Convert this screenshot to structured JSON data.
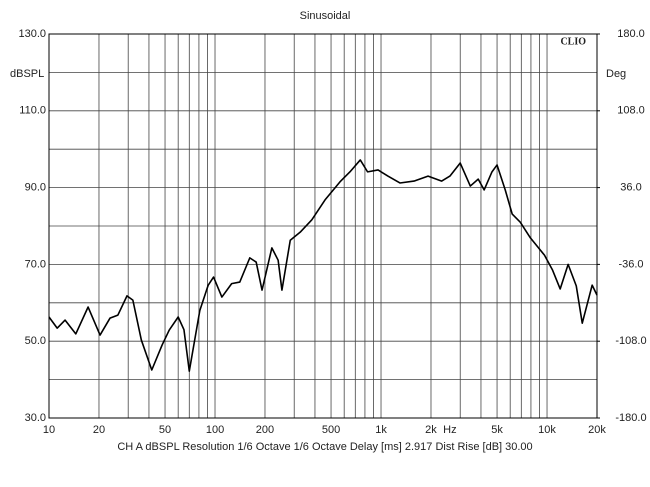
{
  "chart_data": {
    "type": "line",
    "title": "Sinusoidal",
    "brand": "CLIO",
    "ylabel": "dBSPL",
    "y2label": "Deg",
    "x_unit": "Hz",
    "footer": "CH A   dBSPL   Resolution 1/6 Octave   1/6 Octave   Delay [ms] 2.917   Dist Rise [dB] 30.00",
    "xscale": "log",
    "xlim": [
      10,
      20000
    ],
    "ylim": [
      30,
      130
    ],
    "y2lim": [
      -180,
      180
    ],
    "xticks": [
      10,
      20,
      50,
      100,
      200,
      500,
      {
        "value": 1000,
        "label": "1k"
      },
      {
        "value": 2000,
        "label": "2k"
      },
      {
        "value": 5000,
        "label": "5k"
      },
      {
        "value": 10000,
        "label": "10k"
      },
      {
        "value": 20000,
        "label": "20k"
      }
    ],
    "xgrid": [
      10,
      20,
      30,
      40,
      50,
      60,
      70,
      80,
      90,
      100,
      200,
      300,
      400,
      500,
      600,
      700,
      800,
      900,
      1000,
      2000,
      3000,
      4000,
      5000,
      6000,
      7000,
      8000,
      9000,
      10000,
      20000
    ],
    "yticks": [
      {
        "value": 30,
        "label": "30.0"
      },
      {
        "value": 50,
        "label": "50.0"
      },
      {
        "value": 70,
        "label": "70.0"
      },
      {
        "value": 90,
        "label": "90.0"
      },
      {
        "value": 110,
        "label": "110.0"
      },
      {
        "value": 130,
        "label": "130.0"
      }
    ],
    "ygrid": [
      40,
      60,
      80,
      100,
      120
    ],
    "y2ticks": [
      {
        "value": -180,
        "label": "-180.0"
      },
      {
        "value": -108,
        "label": "-108.0"
      },
      {
        "value": -36,
        "label": "-36.0"
      },
      {
        "value": 36,
        "label": "36.0"
      },
      {
        "value": 108,
        "label": "108.0"
      },
      {
        "value": 180,
        "label": "180.0"
      }
    ],
    "grid": true,
    "series": [
      {
        "name": "CH A",
        "color": "#000000",
        "x": [
          10,
          11.2,
          12.5,
          14.5,
          17.2,
          20.3,
          23.3,
          26,
          29.5,
          32,
          36,
          41.6,
          48,
          53,
          60,
          65,
          70,
          81,
          91,
          98,
          110,
          126,
          141,
          162,
          177,
          192,
          220,
          240,
          253,
          284,
          326,
          383,
          460,
          566,
          650,
          750,
          830,
          960,
          1100,
          1300,
          1580,
          1920,
          2320,
          2600,
          3000,
          3450,
          3850,
          4180,
          4660,
          5000,
          5600,
          6170,
          6900,
          7940,
          9650,
          10800,
          12000,
          13400,
          15000,
          16300,
          18700,
          20000
        ],
        "values": [
          56.3,
          53.4,
          55.5,
          51.9,
          58.9,
          51.6,
          56,
          56.8,
          61.8,
          60.7,
          50.3,
          42.5,
          49,
          52.9,
          56.3,
          53,
          42.2,
          58,
          64.6,
          66.7,
          61.5,
          65,
          65.4,
          71.7,
          70.6,
          63.3,
          74.3,
          71.1,
          63.3,
          76.3,
          78.4,
          81.6,
          86.8,
          91.5,
          94.1,
          97.2,
          94.1,
          94.6,
          93,
          91.2,
          91.7,
          93,
          91.7,
          93,
          96.4,
          90.4,
          92.2,
          89.4,
          94.1,
          95.9,
          89.4,
          83.1,
          81,
          76.9,
          72.4,
          68.5,
          63.6,
          70,
          64.4,
          54.7,
          64.6,
          62
        ]
      }
    ]
  }
}
